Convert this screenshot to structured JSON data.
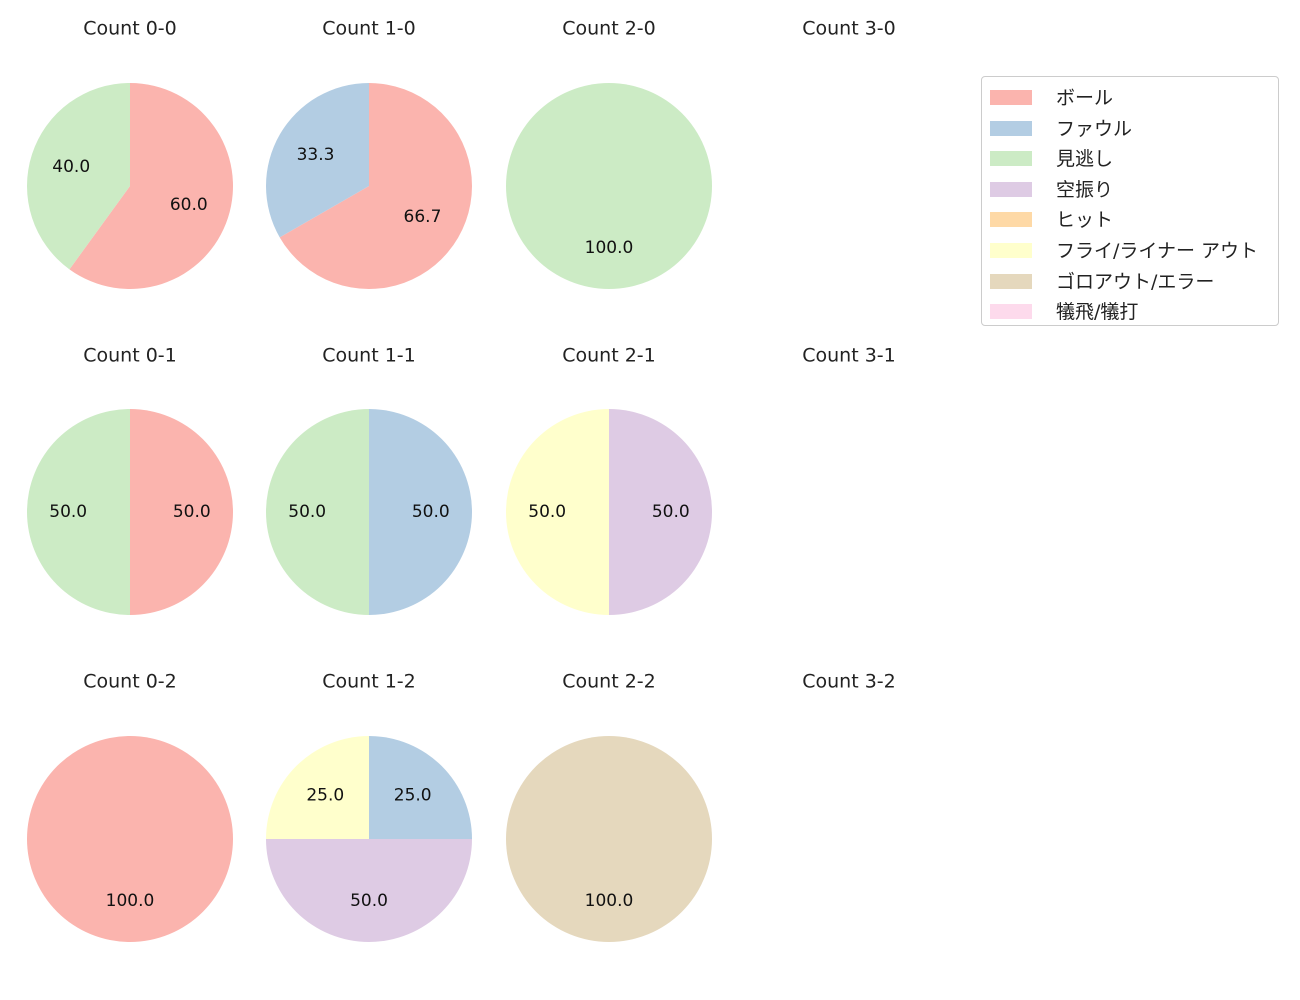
{
  "chart_data": {
    "type": "pie",
    "legend_placement": "top-right",
    "categories": [
      "ボール",
      "ファウル",
      "見逃し",
      "空振り",
      "ヒット",
      "フライ/ライナー アウト",
      "ゴロアウト/エラー",
      "犠飛/犠打"
    ],
    "colors": [
      "#fbb4ae",
      "#b3cde3",
      "#ccebc5",
      "#decbe4",
      "#fed9a6",
      "#ffffcc",
      "#e5d8bd",
      "#fddaec"
    ],
    "panels": [
      {
        "title": "Count 0-0",
        "slices": [
          {
            "category": "ボール",
            "value": 60.0,
            "label": "60.0"
          },
          {
            "category": "見逃し",
            "value": 40.0,
            "label": "40.0"
          }
        ]
      },
      {
        "title": "Count 1-0",
        "slices": [
          {
            "category": "ボール",
            "value": 66.7,
            "label": "66.7"
          },
          {
            "category": "ファウル",
            "value": 33.3,
            "label": "33.3"
          }
        ]
      },
      {
        "title": "Count 2-0",
        "slices": [
          {
            "category": "見逃し",
            "value": 100.0,
            "label": "100.0"
          }
        ]
      },
      {
        "title": "Count 3-0",
        "slices": []
      },
      {
        "title": "Count 0-1",
        "slices": [
          {
            "category": "ボール",
            "value": 50.0,
            "label": "50.0"
          },
          {
            "category": "見逃し",
            "value": 50.0,
            "label": "50.0"
          }
        ]
      },
      {
        "title": "Count 1-1",
        "slices": [
          {
            "category": "ファウル",
            "value": 50.0,
            "label": "50.0"
          },
          {
            "category": "見逃し",
            "value": 50.0,
            "label": "50.0"
          }
        ]
      },
      {
        "title": "Count 2-1",
        "slices": [
          {
            "category": "空振り",
            "value": 50.0,
            "label": "50.0"
          },
          {
            "category": "フライ/ライナー アウト",
            "value": 50.0,
            "label": "50.0"
          }
        ]
      },
      {
        "title": "Count 3-1",
        "slices": []
      },
      {
        "title": "Count 0-2",
        "slices": [
          {
            "category": "ボール",
            "value": 100.0,
            "label": "100.0"
          }
        ]
      },
      {
        "title": "Count 1-2",
        "slices": [
          {
            "category": "ファウル",
            "value": 25.0,
            "label": "25.0"
          },
          {
            "category": "空振り",
            "value": 50.0,
            "label": "50.0"
          },
          {
            "category": "フライ/ライナー アウト",
            "value": 25.0,
            "label": "25.0"
          }
        ]
      },
      {
        "title": "Count 2-2",
        "slices": [
          {
            "category": "ゴロアウト/エラー",
            "value": 100.0,
            "label": "100.0"
          }
        ]
      },
      {
        "title": "Count 3-2",
        "slices": []
      }
    ]
  }
}
